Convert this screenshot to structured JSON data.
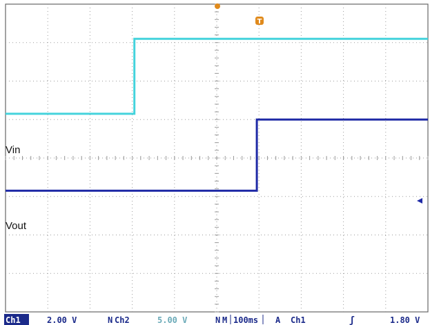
{
  "colors": {
    "ch1": "#44d3dc",
    "ch2": "#1f2aa6",
    "grid": "#9a9a9a",
    "border": "#666666",
    "marker": "#e08a1c",
    "status_text": "#1b2a8a",
    "ch1_badge_bg": "#1b2a8a",
    "ch1_badge_text": "#ffffff",
    "ch2_value_text": "#6aaab8"
  },
  "chart_data": {
    "type": "line",
    "xlim": [
      0,
      10
    ],
    "ylim": [
      -4,
      4
    ],
    "grid": true,
    "series": [
      {
        "name": "Vin",
        "x": [
          0,
          3.05,
          3.05,
          10
        ],
        "y": [
          1.15,
          1.15,
          3.1,
          3.1
        ]
      },
      {
        "name": "Vout",
        "x": [
          0,
          5.95,
          5.95,
          10
        ],
        "y": [
          -0.85,
          -0.85,
          1.0,
          1.0
        ]
      }
    ]
  },
  "labels": {
    "vin": "Vin",
    "vout": "Vout",
    "trigger_marker": "T"
  },
  "status": {
    "ch1_badge": "Ch1",
    "ch1_scale": "2.00 V",
    "ch2_prefix": "N",
    "ch2_name": "Ch2",
    "ch2_scale": "5.00 V",
    "math_prefix": "N",
    "timebase_label": "M",
    "timebase": "100ms",
    "trigger_mode": "A",
    "trigger_source": "Ch1",
    "trigger_slope": "ʃ",
    "trigger_level": "1.80 V"
  }
}
